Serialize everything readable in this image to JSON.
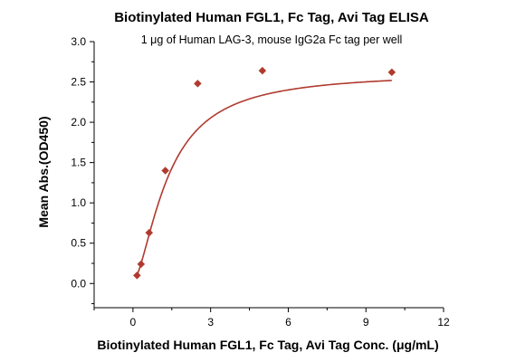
{
  "chart_data": {
    "type": "scatter",
    "title": "Biotinylated Human FGL1, Fc Tag, Avi Tag ELISA",
    "subtitle": "1 μg of Human LAG-3, mouse IgG2a Fc tag per well",
    "xlabel": "Biotinylated Human FGL1, Fc Tag, Avi Tag Conc. (μg/mL)",
    "ylabel": "Mean Abs.(OD450)",
    "xlim": [
      -1.5,
      12
    ],
    "ylim": [
      -0.3,
      3.0
    ],
    "xticks": [
      0,
      3,
      6,
      9,
      12
    ],
    "xtick_labels": [
      "0",
      "3",
      "6",
      "9",
      "12"
    ],
    "yticks": [
      0.0,
      0.5,
      1.0,
      1.5,
      2.0,
      2.5,
      3.0
    ],
    "ytick_labels": [
      "0.0",
      "0.5",
      "1.0",
      "1.5",
      "2.0",
      "2.5",
      "3.0"
    ],
    "grid": false,
    "legend": "none",
    "series": [
      {
        "marker": "diamond",
        "color": "#b03a2e",
        "x": [
          0.156,
          0.3125,
          0.625,
          1.25,
          2.5,
          5,
          10
        ],
        "y": [
          0.1,
          0.24,
          0.63,
          1.4,
          2.48,
          2.64,
          2.62
        ]
      }
    ],
    "fit_curve": {
      "color": "#b03a2e",
      "model": "sigmoidal",
      "bottom": 0.02,
      "top": 2.62,
      "ec50": 1.35,
      "slope": 1.6
    }
  }
}
